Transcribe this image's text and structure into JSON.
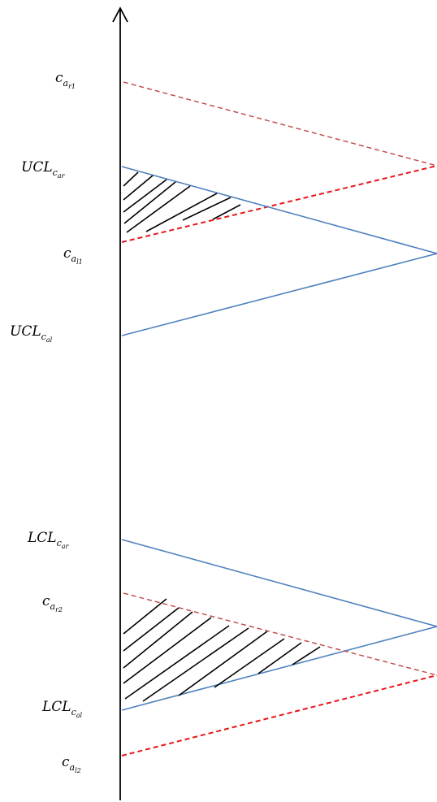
{
  "colors": {
    "axis": "#000000",
    "blue_line": "#4f81bd",
    "red_dashed_light": "#c0504d",
    "red_dashed": "#e8161b",
    "hatch": "#000000"
  },
  "labels": {
    "c_ar1": {
      "base": "c",
      "sub": "a",
      "subsub": "r1"
    },
    "ucl_car": {
      "base": "UCL",
      "sub": "c",
      "subsub": "ar"
    },
    "c_al1": {
      "base": "c",
      "sub": "a",
      "subsub": "l1"
    },
    "ucl_cal": {
      "base": "UCL",
      "sub": "c",
      "subsub": "al"
    },
    "lcl_car": {
      "base": "LCL",
      "sub": "c",
      "subsub": "ar"
    },
    "c_ar2": {
      "base": "c",
      "sub": "a",
      "subsub": "r2"
    },
    "lcl_cal": {
      "base": "LCL",
      "sub": "c",
      "subsub": "al"
    },
    "c_al2": {
      "base": "c",
      "sub": "a",
      "subsub": "l2"
    }
  }
}
